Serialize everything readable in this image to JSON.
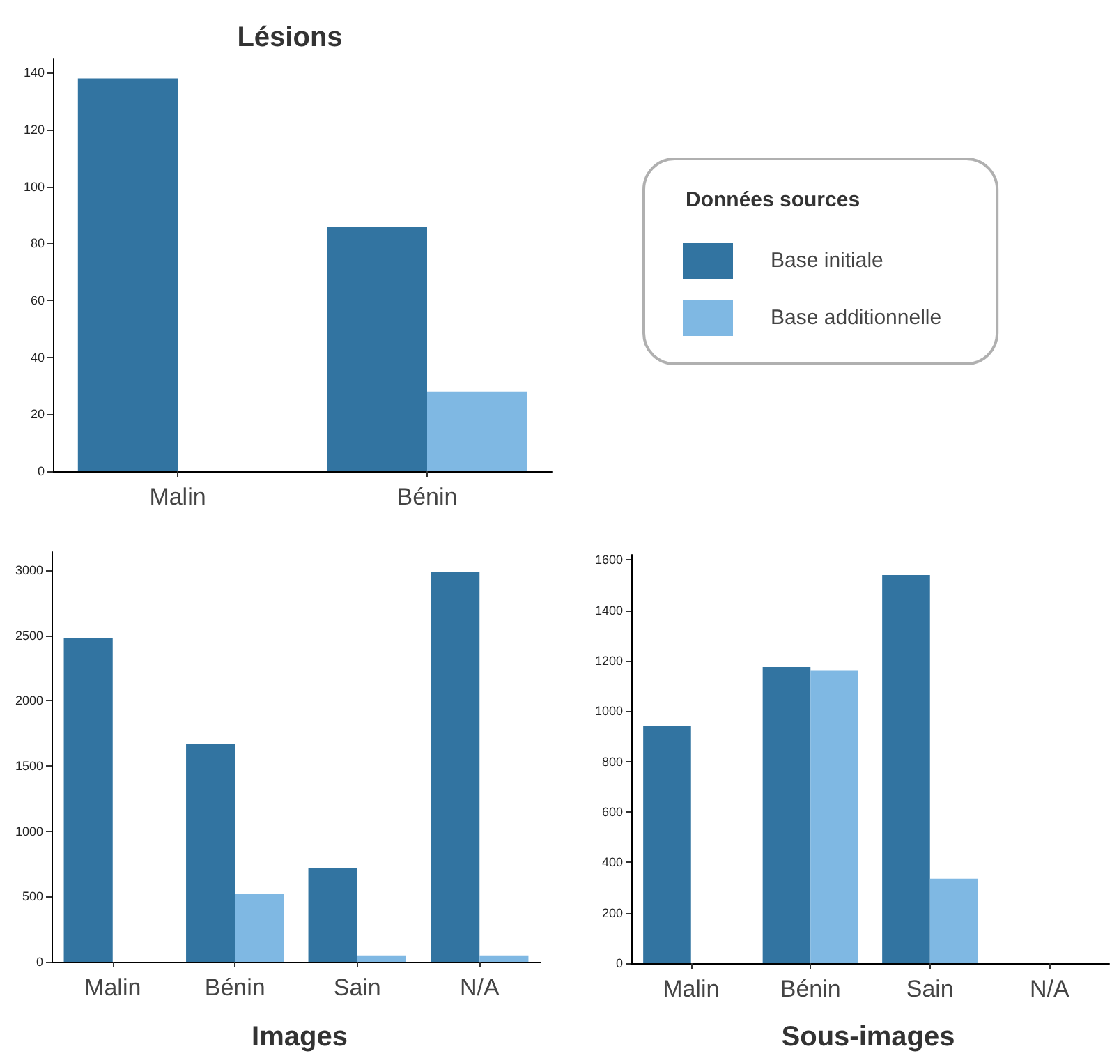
{
  "chart_data": [
    {
      "type": "bar",
      "title": "Lésions",
      "categories": [
        "Malin",
        "Bénin"
      ],
      "legend": "right",
      "legend_title": "Données sources",
      "ylim": [
        0,
        145
      ],
      "yticks": [
        0,
        20,
        40,
        60,
        80,
        100,
        120,
        140
      ],
      "grid": false,
      "series": [
        {
          "name": "Base initiale",
          "color": "#3274a1",
          "values": [
            138,
            86
          ]
        },
        {
          "name": "Base additionnelle",
          "color": "#7fb8e3",
          "values": [
            0,
            28
          ]
        }
      ]
    },
    {
      "type": "bar",
      "title": "Images",
      "categories": [
        "Malin",
        "Bénin",
        "Sain",
        "N/A"
      ],
      "legend": false,
      "ylim": [
        0,
        3140
      ],
      "yticks": [
        0,
        500,
        1000,
        1500,
        2000,
        2500,
        3000
      ],
      "grid": false,
      "series": [
        {
          "color": "#3274a1",
          "values": [
            2480,
            1670,
            720,
            2990
          ]
        },
        {
          "color": "#7fb8e3",
          "values": [
            0,
            520,
            50,
            50
          ]
        }
      ]
    },
    {
      "type": "bar",
      "title": "Sous-images",
      "categories": [
        "Malin",
        "Bénin",
        "Sain",
        "N/A"
      ],
      "legend": false,
      "ylim": [
        0,
        1620
      ],
      "yticks": [
        0,
        200,
        400,
        600,
        800,
        1000,
        1200,
        1400,
        1600
      ],
      "grid": false,
      "series": [
        {
          "color": "#3274a1",
          "values": [
            940,
            1175,
            1540,
            0
          ]
        },
        {
          "color": "#7fb8e3",
          "values": [
            0,
            1160,
            335,
            0
          ]
        }
      ]
    }
  ]
}
